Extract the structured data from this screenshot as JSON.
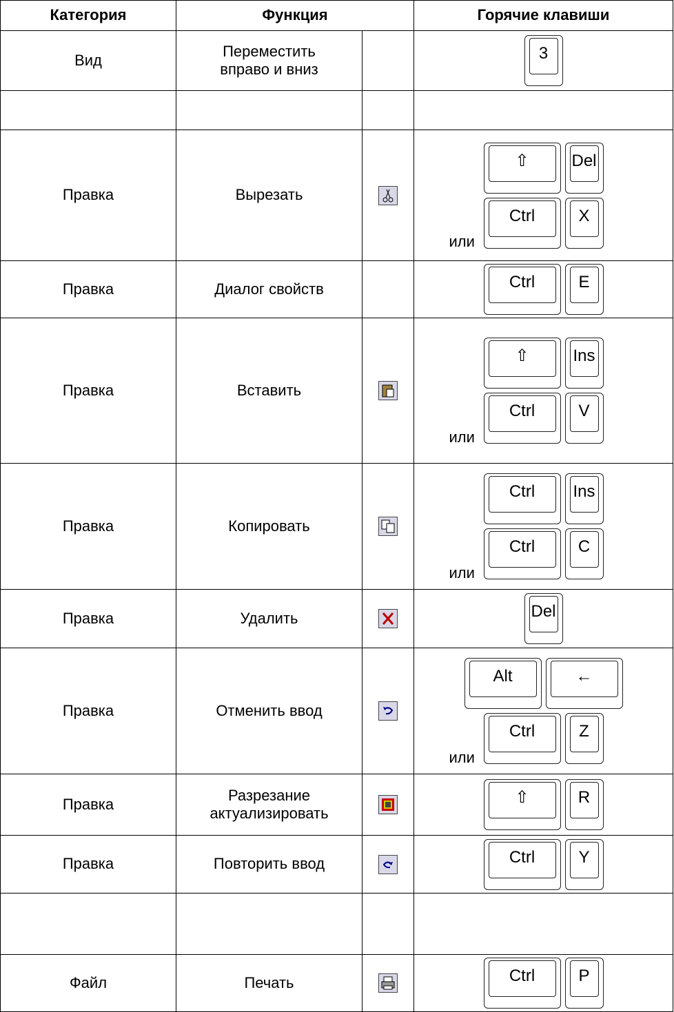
{
  "header": [
    "Категория",
    "Функция",
    "Горячие клавиши"
  ],
  "rows": [
    {
      "category": "Вид",
      "function": "Переместить\nвправо и вниз",
      "keys": [
        [
          {
            "label": "3"
          }
        ]
      ]
    },
    {
      "category": null,
      "function": null,
      "keys": []
    },
    {
      "category": "Правка",
      "function": "Вырезать",
      "keys": [
        [
          {
            "label": "⇧",
            "wide": true
          },
          {
            "label": "Del"
          }
        ],
        [
          {
            "label": "Ctrl",
            "wide": true
          },
          {
            "label": "X"
          }
        ]
      ],
      "or": "или"
    },
    {
      "category": "Правка",
      "function": "Диалог свойств",
      "keys": [
        [
          {
            "label": "Ctrl",
            "wide": true
          },
          {
            "label": "E"
          }
        ]
      ]
    },
    {
      "category": "Правка",
      "function": "Вставить",
      "keys": [
        [
          {
            "label": "⇧",
            "wide": true
          },
          {
            "label": "Ins"
          }
        ],
        [
          {
            "label": "Ctrl",
            "wide": true
          },
          {
            "label": "V"
          }
        ]
      ],
      "or": "или"
    },
    {
      "category": "Правка",
      "function": "Копировать",
      "keys": [
        [
          {
            "label": "Ctrl",
            "wide": true
          },
          {
            "label": "Ins"
          }
        ],
        [
          {
            "label": "Ctrl",
            "wide": true
          },
          {
            "label": "C"
          }
        ]
      ],
      "or": "или"
    },
    {
      "category": "Правка",
      "function": "Удалить",
      "keys": [
        [
          {
            "label": "Del"
          }
        ]
      ]
    },
    {
      "category": "Правка",
      "function": "Отменить ввод",
      "keys": [
        [
          {
            "label": "Alt",
            "wide": true
          },
          {
            "label": "←",
            "wide": true
          }
        ],
        [
          {
            "label": "Ctrl",
            "wide": true
          },
          {
            "label": "Z"
          }
        ]
      ],
      "or": "или"
    },
    {
      "category": "Правка",
      "function": "Разрезание\nактуализировать",
      "keys": [
        [
          {
            "label": "⇧",
            "wide": true
          },
          {
            "label": "R"
          }
        ]
      ]
    },
    {
      "category": "Правка",
      "function": "Повторить ввод",
      "keys": [
        [
          {
            "label": "Ctrl",
            "wide": true
          },
          {
            "label": "Y"
          }
        ]
      ]
    },
    {
      "category": null,
      "function": null,
      "keys": []
    },
    {
      "category": "Файл",
      "function": "Печать",
      "keys": [
        [
          {
            "label": "Ctrl",
            "wide": true
          },
          {
            "label": "P"
          }
        ]
      ]
    }
  ]
}
